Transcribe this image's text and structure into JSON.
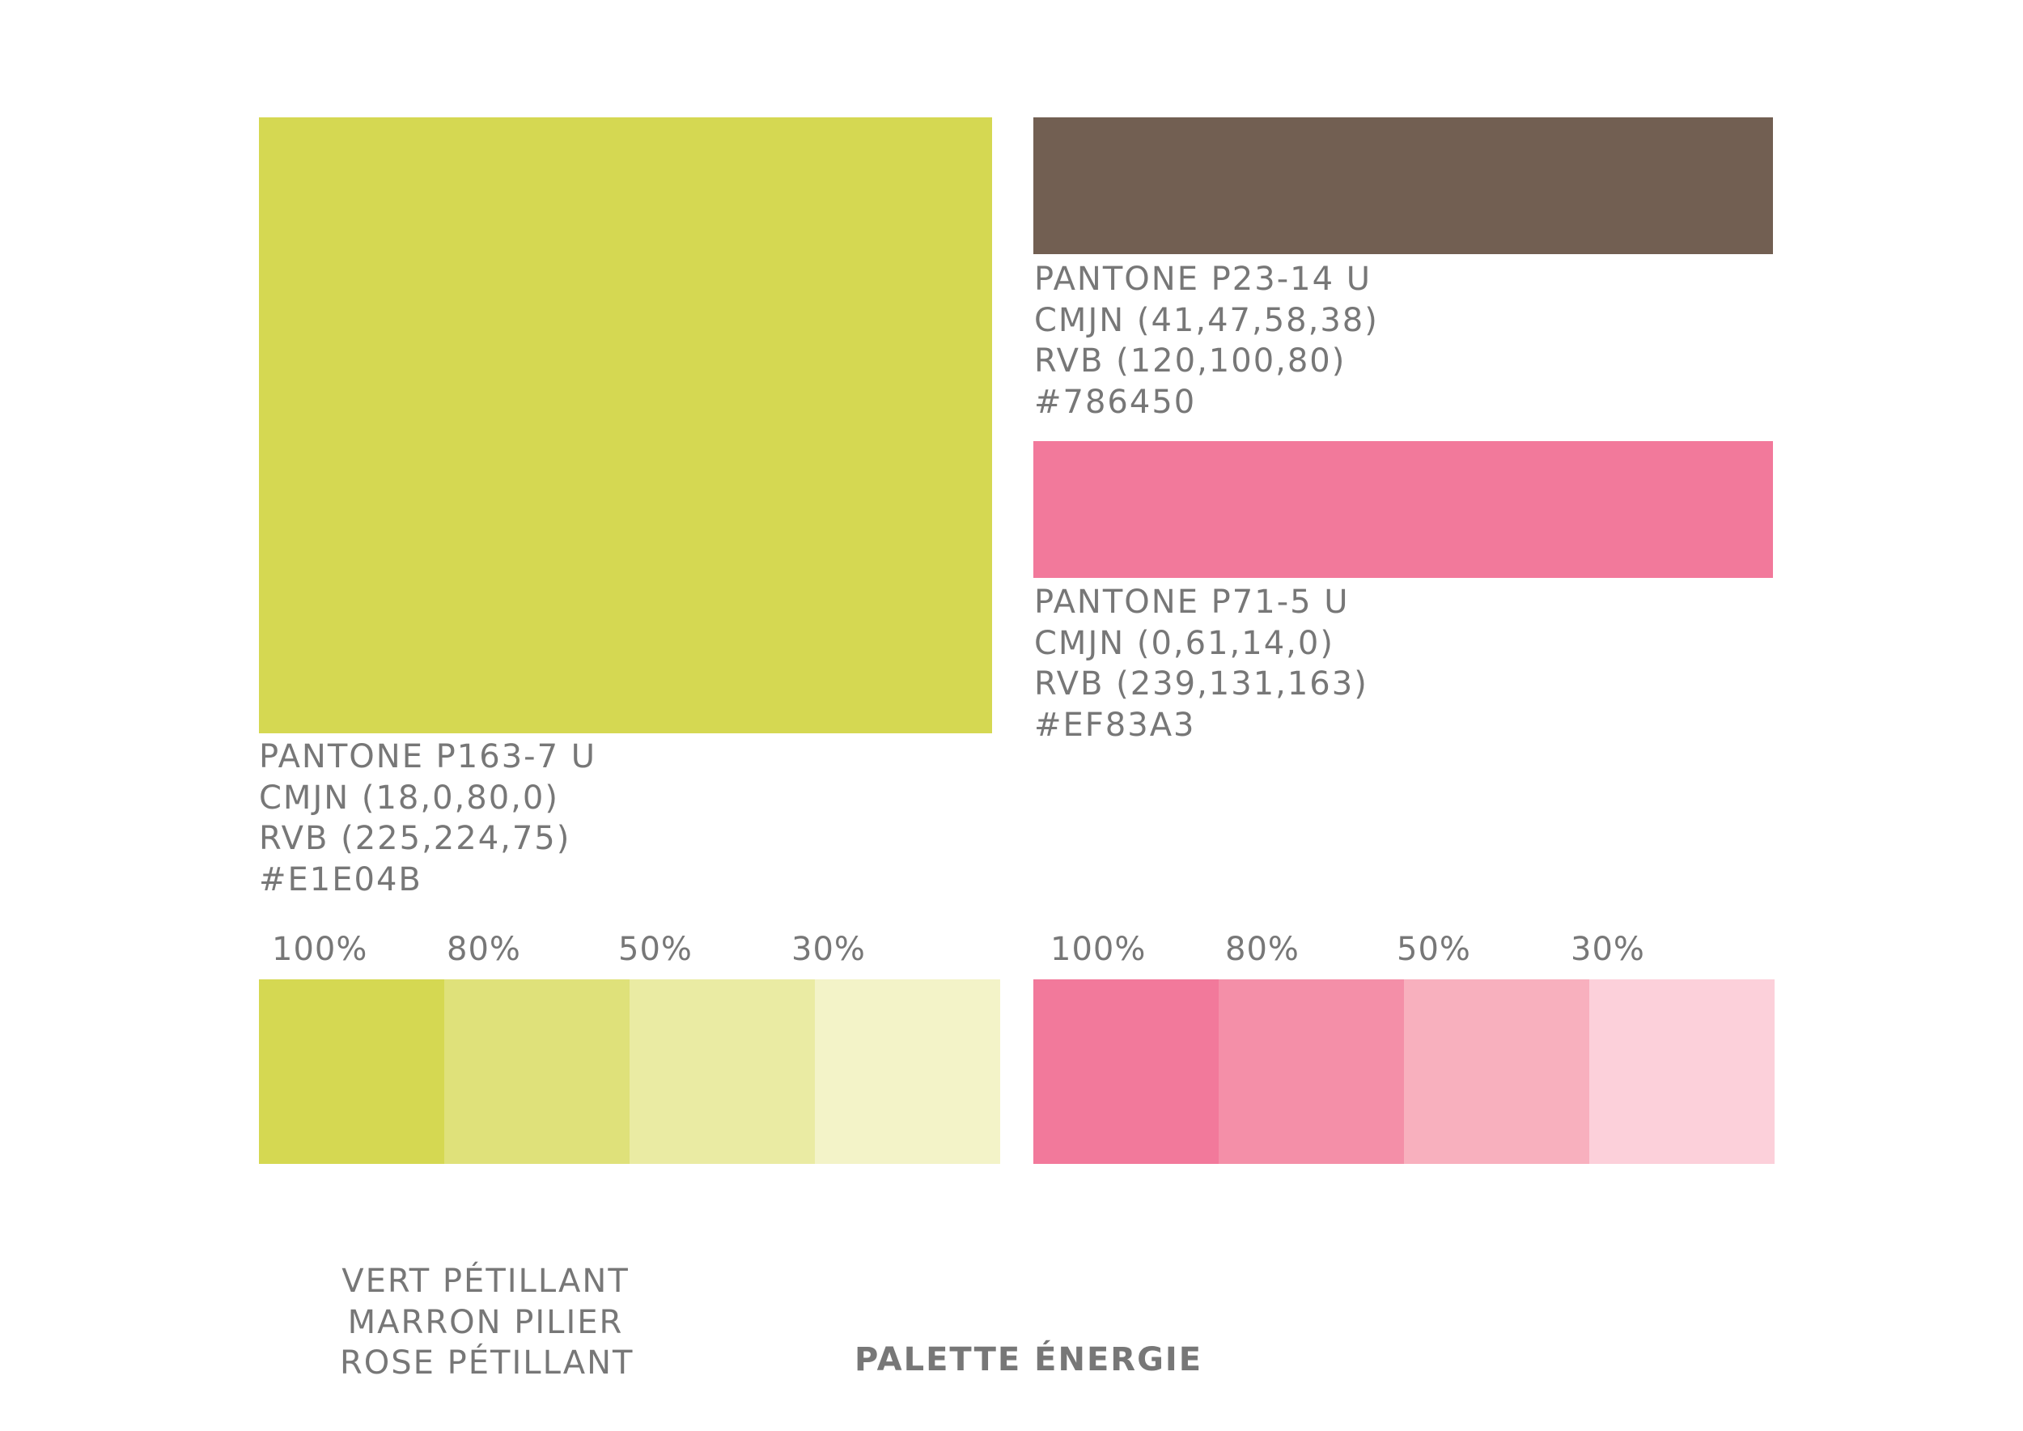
{
  "colors": {
    "green": {
      "hex_value": "#D5D852",
      "tints": [
        "#D5D852",
        "#DFE17A",
        "#EAEBA3",
        "#F3F3C8"
      ]
    },
    "brown": {
      "hex_value": "#725F52"
    },
    "pink": {
      "hex_value": "#F2799B",
      "tints": [
        "#F2799B",
        "#F48FA8",
        "#F8B0BE",
        "#FCD0DA"
      ]
    },
    "text": "#777777"
  },
  "green_info": {
    "pantone": "PANTONE P163-7 U",
    "cmjn": "CMJN (18,0,80,0)",
    "rvb": "RVB (225,224,75)",
    "hex": "#E1E04B"
  },
  "brown_info": {
    "pantone": "PANTONE P23-14 U",
    "cmjn": "CMJN (41,47,58,38)",
    "rvb": "RVB (120,100,80)",
    "hex": "#786450"
  },
  "pink_info": {
    "pantone": "PANTONE P71-5 U",
    "cmjn": "CMJN (0,61,14,0)",
    "rvb": "RVB (239,131,163)",
    "hex": "#EF83A3"
  },
  "green_percentages": [
    "100%",
    "80%",
    "50%",
    "30%"
  ],
  "pink_percentages": [
    "100%",
    "80%",
    "50%",
    "30%"
  ],
  "names": [
    "VERT PÉTILLANT",
    "MARRON PILIER",
    "ROSE PÉTILLANT"
  ],
  "title": "PALETTE ÉNERGIE"
}
